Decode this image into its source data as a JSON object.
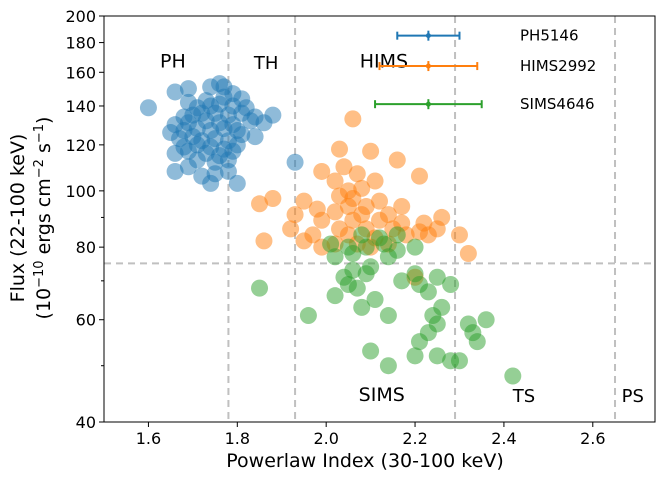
{
  "chart_data": {
    "type": "scatter",
    "xlabel": "Powerlaw Index (30-100 keV)",
    "ylabel_line1": "Flux (22-100 keV)",
    "ylabel_line2": "(10^-10 ergs cm^-2 s^-1)",
    "xlim": [
      1.5,
      2.74
    ],
    "ylim": [
      40,
      200
    ],
    "yscale": "log",
    "xticks": [
      1.6,
      1.8,
      2.0,
      2.2,
      2.4,
      2.6
    ],
    "xtick_labels": [
      "1.6",
      "1.8",
      "2.0",
      "2.2",
      "2.4",
      "2.6"
    ],
    "yticks": [
      40,
      60,
      80,
      100,
      120,
      140,
      160,
      180,
      200
    ],
    "ytick_labels": [
      "40",
      "60",
      "80",
      "100",
      "120",
      "140",
      "160",
      "180",
      "200"
    ],
    "vertical_lines": [
      1.78,
      1.93,
      2.29,
      2.65
    ],
    "horizontal_line": 75,
    "region_labels": [
      {
        "text": "PH",
        "x": 1.655,
        "y": 163
      },
      {
        "text": "TH",
        "x": 1.865,
        "y": 162
      },
      {
        "text": "HIMS",
        "x": 2.13,
        "y": 163
      },
      {
        "text": "SIMS",
        "x": 2.125,
        "y": 43.5
      },
      {
        "text": "TS",
        "x": 2.445,
        "y": 43.3
      },
      {
        "text": "PS",
        "x": 2.69,
        "y": 43.3
      }
    ],
    "series": [
      {
        "name": "PH5146",
        "color": "#1f77b4",
        "errorbar": {
          "x": 2.23,
          "y": 185,
          "xerr": 0.07
        },
        "points": [
          [
            1.6,
            139
          ],
          [
            1.66,
            148
          ],
          [
            1.69,
            150
          ],
          [
            1.74,
            151
          ],
          [
            1.76,
            153
          ],
          [
            1.77,
            151
          ],
          [
            1.79,
            147
          ],
          [
            1.81,
            144
          ],
          [
            1.77,
            145
          ],
          [
            1.73,
            143
          ],
          [
            1.69,
            142
          ],
          [
            1.71,
            139
          ],
          [
            1.74,
            140
          ],
          [
            1.76,
            141
          ],
          [
            1.79,
            140
          ],
          [
            1.82,
            139
          ],
          [
            1.68,
            134
          ],
          [
            1.7,
            135
          ],
          [
            1.72,
            136
          ],
          [
            1.75,
            136
          ],
          [
            1.78,
            135
          ],
          [
            1.81,
            136
          ],
          [
            1.84,
            134
          ],
          [
            1.86,
            131
          ],
          [
            1.88,
            135
          ],
          [
            1.66,
            130
          ],
          [
            1.69,
            131
          ],
          [
            1.73,
            132
          ],
          [
            1.76,
            131
          ],
          [
            1.79,
            130
          ],
          [
            1.83,
            132
          ],
          [
            1.65,
            126
          ],
          [
            1.68,
            127
          ],
          [
            1.71,
            128
          ],
          [
            1.74,
            127
          ],
          [
            1.77,
            128
          ],
          [
            1.8,
            127
          ],
          [
            1.67,
            123
          ],
          [
            1.7,
            124
          ],
          [
            1.72,
            122
          ],
          [
            1.75,
            123
          ],
          [
            1.78,
            122
          ],
          [
            1.81,
            125
          ],
          [
            1.84,
            124
          ],
          [
            1.68,
            119
          ],
          [
            1.71,
            120
          ],
          [
            1.74,
            119
          ],
          [
            1.77,
            118
          ],
          [
            1.8,
            120
          ],
          [
            1.66,
            116
          ],
          [
            1.69,
            117
          ],
          [
            1.73,
            116
          ],
          [
            1.76,
            115
          ],
          [
            1.79,
            117
          ],
          [
            1.71,
            113
          ],
          [
            1.75,
            112
          ],
          [
            1.78,
            113
          ],
          [
            1.66,
            108
          ],
          [
            1.69,
            110
          ],
          [
            1.72,
            106
          ],
          [
            1.75,
            107
          ],
          [
            1.78,
            108
          ],
          [
            1.74,
            103
          ],
          [
            1.8,
            103
          ],
          [
            1.93,
            112
          ]
        ]
      },
      {
        "name": "HIMS2992",
        "color": "#ff7f0e",
        "errorbar": {
          "x": 2.23,
          "y": 164,
          "xerr": 0.11
        },
        "points": [
          [
            2.06,
            133
          ],
          [
            2.03,
            118
          ],
          [
            2.1,
            117
          ],
          [
            2.16,
            113
          ],
          [
            1.99,
            108
          ],
          [
            2.04,
            110
          ],
          [
            2.07,
            107
          ],
          [
            2.02,
            104
          ],
          [
            2.11,
            104
          ],
          [
            2.21,
            106
          ],
          [
            2.05,
            100
          ],
          [
            2.08,
            101
          ],
          [
            1.88,
            97
          ],
          [
            1.85,
            95
          ],
          [
            1.95,
            96
          ],
          [
            2.03,
            98
          ],
          [
            2.06,
            97
          ],
          [
            2.12,
            96
          ],
          [
            2.17,
            94
          ],
          [
            1.98,
            93
          ],
          [
            2.05,
            94
          ],
          [
            2.09,
            94
          ],
          [
            1.93,
            91
          ],
          [
            2.02,
            92
          ],
          [
            2.08,
            91
          ],
          [
            2.14,
            91
          ],
          [
            1.99,
            89
          ],
          [
            2.06,
            89
          ],
          [
            2.12,
            89
          ],
          [
            2.17,
            88
          ],
          [
            2.22,
            88
          ],
          [
            2.26,
            90
          ],
          [
            1.92,
            86
          ],
          [
            2.03,
            86
          ],
          [
            2.09,
            86
          ],
          [
            2.15,
            86
          ],
          [
            2.21,
            85
          ],
          [
            2.25,
            86
          ],
          [
            2.3,
            84
          ],
          [
            1.97,
            84
          ],
          [
            2.05,
            84
          ],
          [
            2.11,
            83
          ],
          [
            2.18,
            84
          ],
          [
            2.23,
            84
          ],
          [
            1.86,
            82
          ],
          [
            1.95,
            82
          ],
          [
            2.02,
            81
          ],
          [
            2.07,
            81
          ],
          [
            2.14,
            81
          ],
          [
            1.99,
            80
          ],
          [
            2.1,
            80
          ],
          [
            2.2,
            71
          ],
          [
            2.32,
            78
          ]
        ]
      },
      {
        "name": "SIMS4646",
        "color": "#2ca02c",
        "errorbar": {
          "x": 2.23,
          "y": 141,
          "xerr": 0.12
        },
        "points": [
          [
            2.08,
            84
          ],
          [
            2.12,
            83
          ],
          [
            2.16,
            84
          ],
          [
            2.01,
            81
          ],
          [
            2.05,
            80
          ],
          [
            2.09,
            80
          ],
          [
            2.13,
            81
          ],
          [
            2.16,
            79
          ],
          [
            2.2,
            80
          ],
          [
            2.02,
            77
          ],
          [
            2.06,
            78
          ],
          [
            2.14,
            77
          ],
          [
            2.06,
            73
          ],
          [
            2.1,
            74
          ],
          [
            2.04,
            71
          ],
          [
            2.09,
            72
          ],
          [
            2.2,
            72
          ],
          [
            2.25,
            71
          ],
          [
            2.05,
            69
          ],
          [
            2.17,
            70
          ],
          [
            2.21,
            69
          ],
          [
            1.85,
            68
          ],
          [
            2.02,
            66
          ],
          [
            2.07,
            68
          ],
          [
            2.11,
            65
          ],
          [
            2.23,
            67
          ],
          [
            2.28,
            69
          ],
          [
            2.08,
            63
          ],
          [
            2.26,
            63
          ],
          [
            1.96,
            61
          ],
          [
            2.14,
            61
          ],
          [
            2.24,
            61
          ],
          [
            2.25,
            59
          ],
          [
            2.32,
            59
          ],
          [
            2.36,
            60
          ],
          [
            2.23,
            57
          ],
          [
            2.33,
            57
          ],
          [
            2.21,
            55
          ],
          [
            2.34,
            55
          ],
          [
            2.1,
            53
          ],
          [
            2.2,
            52
          ],
          [
            2.25,
            52
          ],
          [
            2.28,
            51
          ],
          [
            2.3,
            51
          ],
          [
            2.14,
            50
          ],
          [
            2.42,
            48
          ]
        ]
      }
    ]
  }
}
